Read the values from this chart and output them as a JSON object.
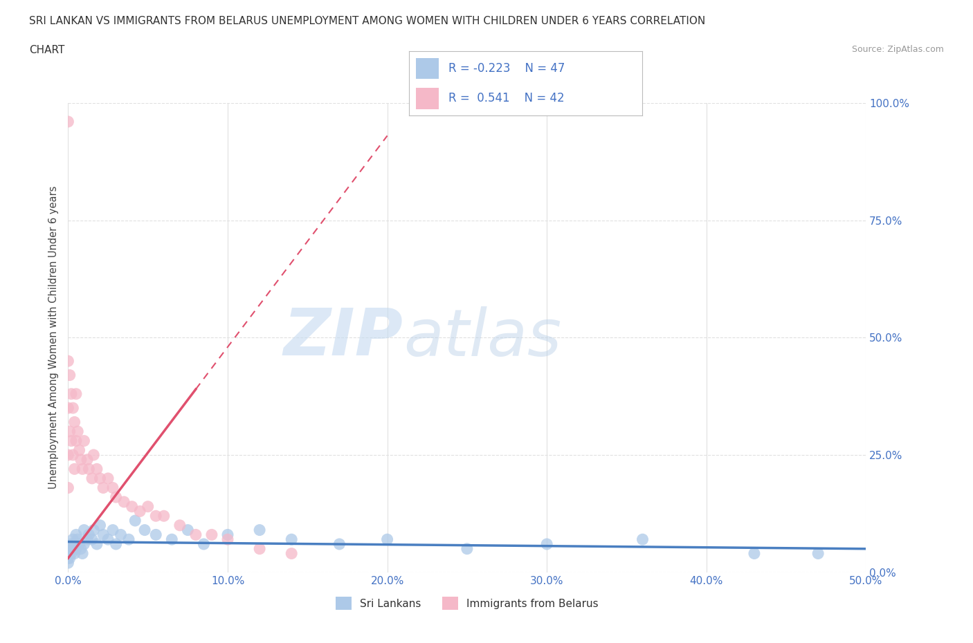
{
  "title_line1": "SRI LANKAN VS IMMIGRANTS FROM BELARUS UNEMPLOYMENT AMONG WOMEN WITH CHILDREN UNDER 6 YEARS CORRELATION",
  "title_line2": "CHART",
  "source": "Source: ZipAtlas.com",
  "ylabel": "Unemployment Among Women with Children Under 6 years",
  "xlim": [
    0.0,
    0.5
  ],
  "ylim": [
    0.0,
    1.0
  ],
  "xticks": [
    0.0,
    0.1,
    0.2,
    0.3,
    0.4,
    0.5
  ],
  "yticks": [
    0.0,
    0.25,
    0.5,
    0.75,
    1.0
  ],
  "xticklabels": [
    "0.0%",
    "10.0%",
    "20.0%",
    "30.0%",
    "40.0%",
    "50.0%"
  ],
  "yticklabels_right": [
    "0.0%",
    "25.0%",
    "50.0%",
    "75.0%",
    "100.0%"
  ],
  "color_blue": "#adc9e8",
  "color_pink": "#f5b8c8",
  "color_trend_blue": "#4a7fc1",
  "color_trend_pink": "#e0506e",
  "color_text_blue": "#4472c4",
  "background_color": "#ffffff",
  "grid_color": "#e0e0e0",
  "watermark_zip": "ZIP",
  "watermark_atlas": "atlas",
  "sri_lankan_x": [
    0.0,
    0.0,
    0.0,
    0.001,
    0.001,
    0.002,
    0.002,
    0.003,
    0.003,
    0.004,
    0.004,
    0.005,
    0.005,
    0.006,
    0.007,
    0.008,
    0.009,
    0.01,
    0.01,
    0.012,
    0.013,
    0.015,
    0.016,
    0.018,
    0.02,
    0.022,
    0.025,
    0.028,
    0.03,
    0.033,
    0.038,
    0.042,
    0.048,
    0.055,
    0.065,
    0.075,
    0.085,
    0.1,
    0.12,
    0.14,
    0.17,
    0.2,
    0.25,
    0.3,
    0.36,
    0.43,
    0.47
  ],
  "sri_lankan_y": [
    0.04,
    0.03,
    0.02,
    0.05,
    0.03,
    0.06,
    0.04,
    0.07,
    0.05,
    0.06,
    0.04,
    0.08,
    0.05,
    0.07,
    0.06,
    0.05,
    0.04,
    0.09,
    0.06,
    0.07,
    0.08,
    0.07,
    0.09,
    0.06,
    0.1,
    0.08,
    0.07,
    0.09,
    0.06,
    0.08,
    0.07,
    0.11,
    0.09,
    0.08,
    0.07,
    0.09,
    0.06,
    0.08,
    0.09,
    0.07,
    0.06,
    0.07,
    0.05,
    0.06,
    0.07,
    0.04,
    0.04
  ],
  "belarus_x": [
    0.0,
    0.0,
    0.0,
    0.0,
    0.0,
    0.001,
    0.001,
    0.002,
    0.002,
    0.003,
    0.003,
    0.004,
    0.004,
    0.005,
    0.005,
    0.006,
    0.007,
    0.008,
    0.009,
    0.01,
    0.012,
    0.013,
    0.015,
    0.016,
    0.018,
    0.02,
    0.022,
    0.025,
    0.028,
    0.03,
    0.035,
    0.04,
    0.045,
    0.05,
    0.055,
    0.06,
    0.07,
    0.08,
    0.09,
    0.1,
    0.12,
    0.14
  ],
  "belarus_y": [
    0.96,
    0.45,
    0.35,
    0.25,
    0.18,
    0.42,
    0.3,
    0.38,
    0.28,
    0.35,
    0.25,
    0.32,
    0.22,
    0.38,
    0.28,
    0.3,
    0.26,
    0.24,
    0.22,
    0.28,
    0.24,
    0.22,
    0.2,
    0.25,
    0.22,
    0.2,
    0.18,
    0.2,
    0.18,
    0.16,
    0.15,
    0.14,
    0.13,
    0.14,
    0.12,
    0.12,
    0.1,
    0.08,
    0.08,
    0.07,
    0.05,
    0.04
  ],
  "trend_blue_slope": -0.03,
  "trend_blue_intercept": 0.065,
  "trend_pink_slope": 4.5,
  "trend_pink_intercept": 0.03
}
